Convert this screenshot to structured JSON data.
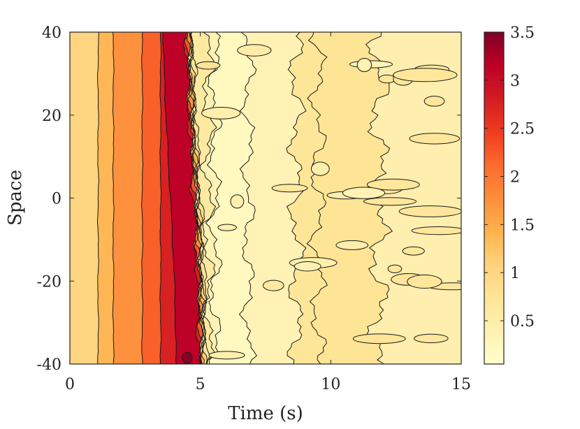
{
  "chart_data": {
    "type": "heatmap",
    "subtype": "filled-contour",
    "xlabel": "Time (s)",
    "ylabel": "Space",
    "xlim": [
      0,
      15
    ],
    "ylim": [
      -40,
      40
    ],
    "x_ticks": [
      "0",
      "5",
      "10",
      "15"
    ],
    "x_tick_values": [
      0,
      5,
      10,
      15
    ],
    "y_ticks": [
      "40",
      "20",
      "0",
      "-20",
      "-40"
    ],
    "y_tick_values": [
      40,
      20,
      0,
      -20,
      -40
    ],
    "colorbar": {
      "range": [
        0.05,
        3.5
      ],
      "ticks": [
        "3.5",
        "3",
        "2.5",
        "2",
        "1.5",
        "1",
        "0.5"
      ],
      "tick_values": [
        3.5,
        3,
        2.5,
        2,
        1.5,
        1,
        0.5
      ],
      "colormap": [
        "#ffffcc",
        "#fff1b1",
        "#fee597",
        "#fed27c",
        "#feb24c",
        "#fd8d3c",
        "#fc6b2d",
        "#f03b20",
        "#d21c22",
        "#bd0026",
        "#800026"
      ]
    },
    "levels": [
      0.25,
      0.5,
      0.75,
      1.0,
      1.25,
      1.5,
      2.0,
      2.5,
      3.0,
      3.25
    ],
    "field_profile": {
      "t": [
        0,
        0.5,
        1.2,
        1.9,
        2.6,
        3.3,
        4.0,
        4.8,
        5.0,
        5.6,
        6.5,
        7.5,
        8.5,
        9.0,
        10.0,
        11.0,
        12.0,
        13.0,
        15.0
      ],
      "value": [
        0.9,
        1.0,
        1.3,
        1.6,
        1.9,
        2.3,
        3.1,
        3.2,
        0.8,
        0.2,
        0.2,
        0.35,
        0.4,
        0.7,
        0.8,
        0.75,
        0.45,
        0.45,
        0.4
      ]
    }
  }
}
